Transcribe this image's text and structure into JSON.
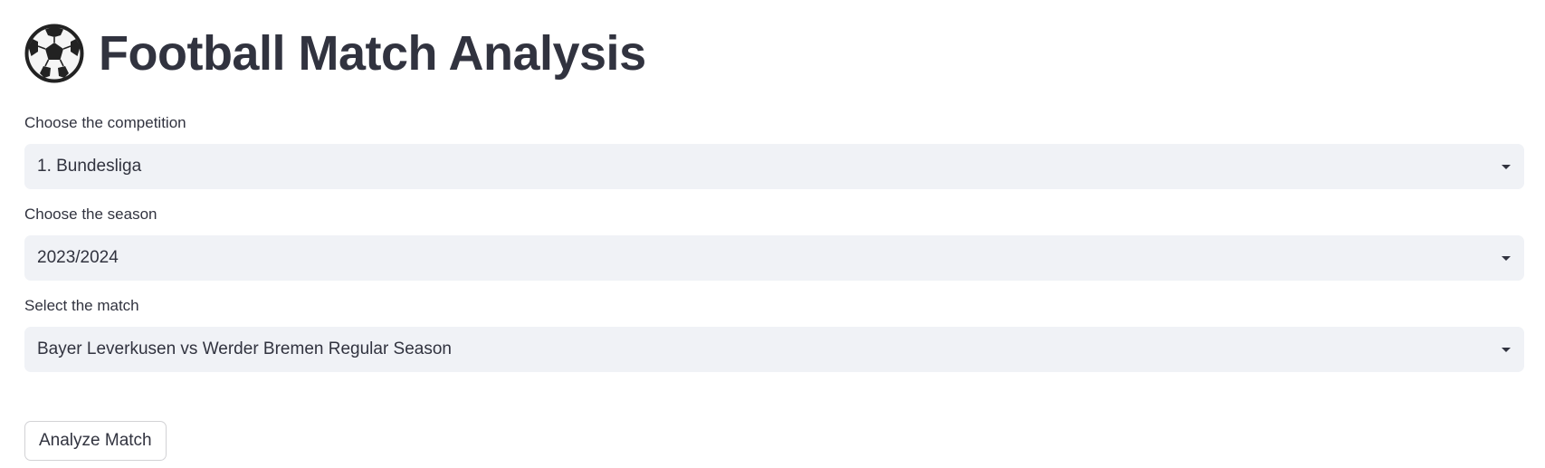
{
  "header": {
    "icon": "soccer-ball-icon",
    "title": "Football Match Analysis"
  },
  "form": {
    "competition": {
      "label": "Choose the competition",
      "value": "1. Bundesliga"
    },
    "season": {
      "label": "Choose the season",
      "value": "2023/2024"
    },
    "match": {
      "label": "Select the match",
      "value": "Bayer Leverkusen vs Werder Bremen Regular Season"
    },
    "analyze_label": "Analyze Match"
  },
  "colors": {
    "text": "#31333f",
    "select_background": "#f0f2f6",
    "button_border": "#d6d6d9"
  }
}
